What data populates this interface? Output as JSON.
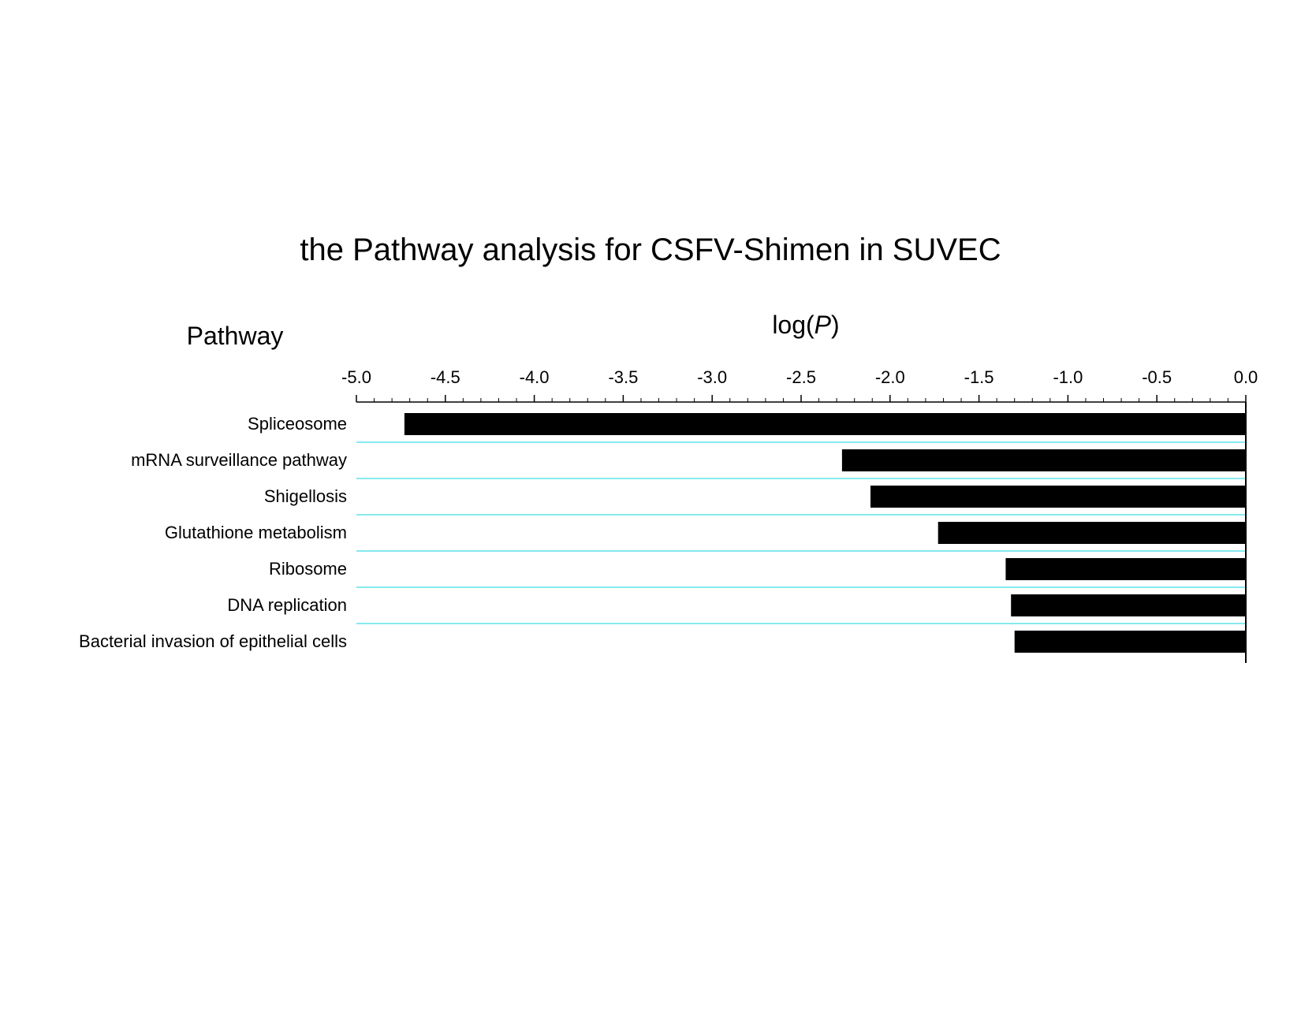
{
  "chart_data": {
    "type": "bar",
    "orientation": "horizontal",
    "title": "the Pathway analysis for CSFV-Shimen in SUVEC",
    "xlabel_prefix": "log(",
    "xlabel_italic": "P",
    "xlabel_suffix": ")",
    "ylabel": "Pathway",
    "categories": [
      "Spliceosome",
      "mRNA surveillance pathway",
      "Shigellosis",
      "Glutathione metabolism",
      "Ribosome",
      "DNA replication",
      "Bacterial invasion of epithelial cells"
    ],
    "values": [
      -4.73,
      -2.27,
      -2.11,
      -1.73,
      -1.35,
      -1.32,
      -1.3
    ],
    "xlim": [
      -5.0,
      0.0
    ],
    "xticks": [
      "-5.0",
      "-4.5",
      "-4.0",
      "-3.5",
      "-3.0",
      "-2.5",
      "-2.0",
      "-1.5",
      "-1.0",
      "-0.5",
      "0.0"
    ],
    "x_axis_position": "top",
    "minor_ticks_per_major": 5,
    "grid": true,
    "colors": {
      "bar": "#000000",
      "gridline": "#5fe3ea",
      "axis": "#000000"
    }
  }
}
